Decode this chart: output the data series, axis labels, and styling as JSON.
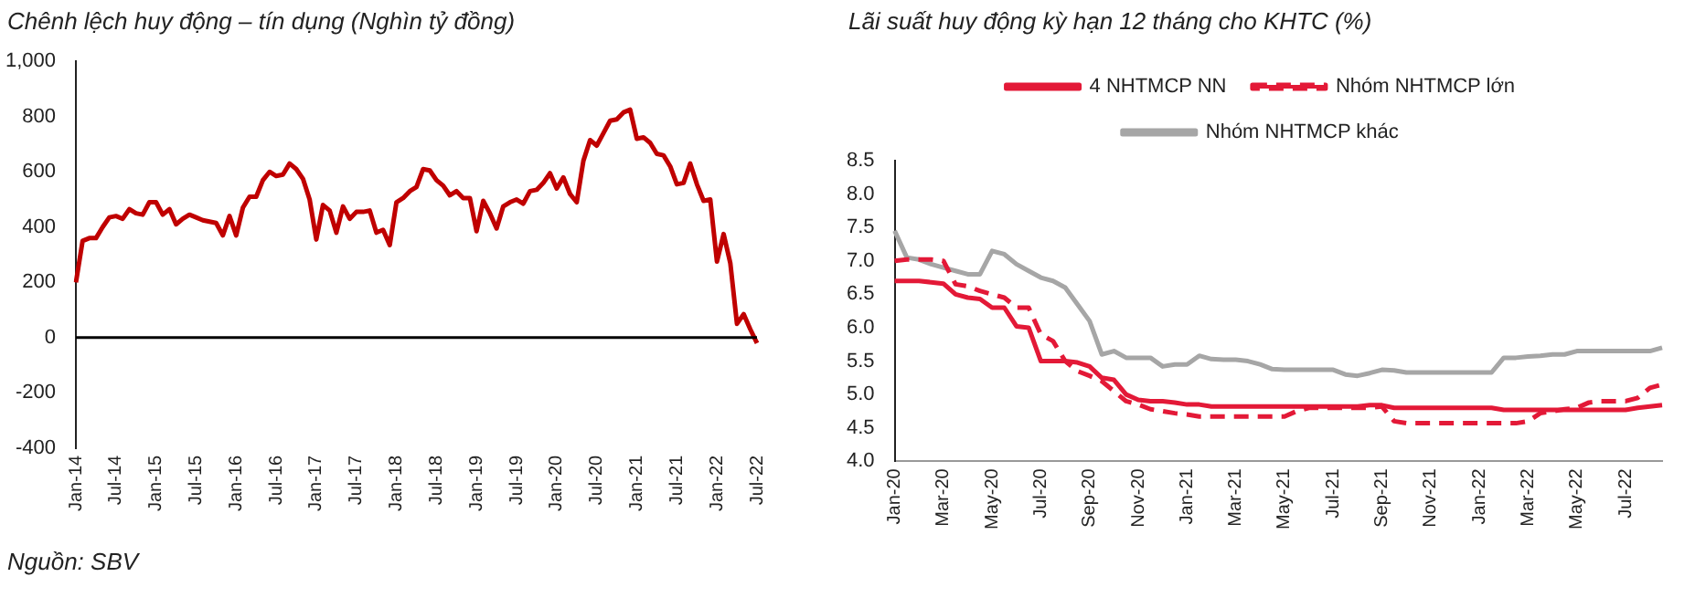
{
  "chart_data": [
    {
      "type": "line",
      "title": "Chênh lệch huy động – tín dụng (Nghìn tỷ đồng)",
      "categories": [
        "Jan-14",
        null,
        null,
        null,
        null,
        null,
        "Jul-14",
        null,
        null,
        null,
        null,
        null,
        "Jan-15",
        null,
        null,
        null,
        null,
        null,
        "Jul-15",
        null,
        null,
        null,
        null,
        null,
        "Jan-16",
        null,
        null,
        null,
        null,
        null,
        "Jul-16",
        null,
        null,
        null,
        null,
        null,
        "Jan-17",
        null,
        null,
        null,
        null,
        null,
        "Jul-17",
        null,
        null,
        null,
        null,
        null,
        "Jan-18",
        null,
        null,
        null,
        null,
        null,
        "Jul-18",
        null,
        null,
        null,
        null,
        null,
        "Jan-19",
        null,
        null,
        null,
        null,
        null,
        "Jul-19",
        null,
        null,
        null,
        null,
        null,
        "Jan-20",
        null,
        null,
        null,
        null,
        null,
        "Jul-20",
        null,
        null,
        null,
        null,
        null,
        "Jan-21",
        null,
        null,
        null,
        null,
        null,
        "Jul-21",
        null,
        null,
        null,
        null,
        null,
        "Jan-22",
        null,
        null,
        null,
        null,
        null,
        "Jul-22"
      ],
      "series": [
        {
          "color": "#c00000",
          "values": [
            200,
            350,
            360,
            360,
            400,
            435,
            440,
            430,
            465,
            450,
            445,
            490,
            490,
            445,
            465,
            410,
            430,
            445,
            435,
            425,
            420,
            415,
            370,
            440,
            370,
            470,
            510,
            510,
            570,
            600,
            585,
            590,
            630,
            610,
            575,
            500,
            355,
            480,
            460,
            380,
            475,
            430,
            455,
            455,
            460,
            380,
            390,
            335,
            490,
            505,
            530,
            545,
            610,
            605,
            570,
            550,
            515,
            530,
            505,
            505,
            385,
            495,
            450,
            395,
            475,
            490,
            500,
            485,
            530,
            535,
            560,
            595,
            540,
            580,
            520,
            490,
            640,
            715,
            695,
            740,
            785,
            790,
            815,
            825,
            720,
            725,
            705,
            665,
            660,
            620,
            555,
            560,
            630,
            555,
            495,
            500,
            275,
            375,
            270,
            50,
            85,
            30,
            -20
          ]
        }
      ],
      "ylim": [
        -400,
        1000
      ],
      "yticks": [
        -400,
        -200,
        0,
        200,
        400,
        600,
        800,
        {
          "value": 1000,
          "label": "1,000"
        }
      ],
      "ref_lines": [
        {
          "axis": "y",
          "value": 0,
          "color": "#000000"
        }
      ],
      "grid": false,
      "legend": false,
      "marker": "none",
      "line_style": "solid",
      "annotations": [
        "Nguồn: SBV"
      ]
    },
    {
      "type": "line",
      "title": "Lãi suất huy động kỳ hạn 12 tháng cho KHTC (%)",
      "categories": [
        "Jan-20",
        null,
        null,
        null,
        "Mar-20",
        null,
        null,
        null,
        "May-20",
        null,
        null,
        null,
        "Jul-20",
        null,
        null,
        null,
        "Sep-20",
        null,
        null,
        null,
        "Nov-20",
        null,
        null,
        null,
        "Jan-21",
        null,
        null,
        null,
        "Mar-21",
        null,
        null,
        null,
        "May-21",
        null,
        null,
        null,
        "Jul-21",
        null,
        null,
        null,
        "Sep-21",
        null,
        null,
        null,
        "Nov-21",
        null,
        null,
        null,
        "Jan-22",
        null,
        null,
        null,
        "Mar-22",
        null,
        null,
        null,
        "May-22",
        null,
        null,
        null,
        "Jul-22",
        null,
        null,
        null
      ],
      "series": [
        {
          "name": "4 NHTMCP NN",
          "color": "#e31937",
          "line_style": "solid",
          "values": [
            6.7,
            6.7,
            6.7,
            6.68,
            6.66,
            6.5,
            6.45,
            6.43,
            6.3,
            6.3,
            6.02,
            6.0,
            5.5,
            5.5,
            5.5,
            5.48,
            5.42,
            5.25,
            5.22,
            5.0,
            4.92,
            4.9,
            4.9,
            4.88,
            4.85,
            4.85,
            4.82,
            4.82,
            4.82,
            4.82,
            4.82,
            4.82,
            4.82,
            4.82,
            4.82,
            4.82,
            4.82,
            4.82,
            4.82,
            4.84,
            4.84,
            4.8,
            4.8,
            4.8,
            4.8,
            4.8,
            4.8,
            4.8,
            4.8,
            4.8,
            4.77,
            4.77,
            4.77,
            4.77,
            4.77,
            4.77,
            4.77,
            4.77,
            4.77,
            4.77,
            4.77,
            4.8,
            4.82,
            4.84
          ]
        },
        {
          "name": "Nhóm NHTMCP lớn",
          "color": "#e31937",
          "line_style": "dashed",
          "values": [
            7.0,
            7.02,
            7.02,
            7.02,
            7.0,
            6.65,
            6.62,
            6.55,
            6.5,
            6.45,
            6.3,
            6.3,
            5.9,
            5.8,
            5.5,
            5.35,
            5.28,
            5.2,
            5.05,
            4.9,
            4.85,
            4.78,
            4.75,
            4.72,
            4.7,
            4.67,
            4.67,
            4.67,
            4.67,
            4.67,
            4.67,
            4.67,
            4.67,
            4.75,
            4.8,
            4.8,
            4.8,
            4.8,
            4.8,
            4.8,
            4.82,
            4.6,
            4.57,
            4.57,
            4.57,
            4.57,
            4.57,
            4.57,
            4.57,
            4.57,
            4.57,
            4.57,
            4.6,
            4.72,
            4.75,
            4.78,
            4.8,
            4.88,
            4.9,
            4.9,
            4.9,
            4.95,
            5.1,
            5.15
          ]
        },
        {
          "name": "Nhóm NHTMCP khác",
          "color": "#a6a6a6",
          "line_style": "solid",
          "values": [
            7.45,
            7.05,
            7.02,
            6.95,
            6.9,
            6.85,
            6.8,
            6.8,
            7.15,
            7.1,
            6.95,
            6.85,
            6.75,
            6.7,
            6.6,
            6.35,
            6.1,
            5.6,
            5.65,
            5.55,
            5.55,
            5.55,
            5.42,
            5.45,
            5.45,
            5.58,
            5.53,
            5.52,
            5.52,
            5.5,
            5.45,
            5.38,
            5.37,
            5.37,
            5.37,
            5.37,
            5.37,
            5.3,
            5.28,
            5.32,
            5.37,
            5.36,
            5.33,
            5.33,
            5.33,
            5.33,
            5.33,
            5.33,
            5.33,
            5.33,
            5.55,
            5.55,
            5.57,
            5.58,
            5.6,
            5.6,
            5.65,
            5.65,
            5.65,
            5.65,
            5.65,
            5.65,
            5.65,
            5.7
          ]
        }
      ],
      "ylim": [
        4.0,
        8.5
      ],
      "yticks": [
        {
          "value": 4,
          "label": "4.0"
        },
        4.5,
        {
          "value": 5,
          "label": "5.0"
        },
        5.5,
        {
          "value": 6,
          "label": "6.0"
        },
        6.5,
        {
          "value": 7,
          "label": "7.0"
        },
        7.5,
        {
          "value": 8,
          "label": "8.0"
        },
        8.5
      ],
      "grid": false,
      "legend": "top",
      "marker": "none"
    }
  ]
}
